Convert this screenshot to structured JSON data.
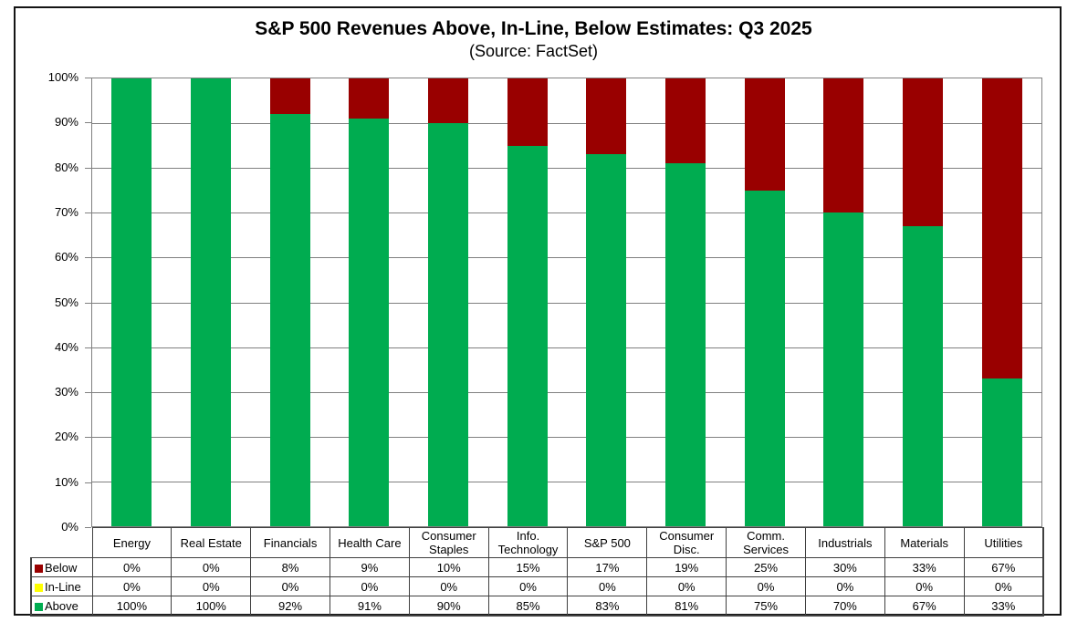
{
  "title": "S&P 500 Revenues Above, In-Line, Below Estimates: Q3 2025",
  "subtitle": "(Source: FactSet)",
  "colors": {
    "below": "#990000",
    "in_line": "#FFFF00",
    "above": "#00AC50",
    "gridline": "#808080",
    "table_border": "#404040"
  },
  "chart_data": {
    "type": "bar",
    "stacked": true,
    "categories": [
      "Energy",
      "Real Estate",
      "Financials",
      "Health Care",
      "Consumer Staples",
      "Info. Technology",
      "S&P 500",
      "Consumer Disc.",
      "Comm. Services",
      "Industrials",
      "Materials",
      "Utilities"
    ],
    "series": [
      {
        "name": "Below",
        "color": "#990000",
        "values": [
          0,
          0,
          8,
          9,
          10,
          15,
          17,
          19,
          25,
          30,
          33,
          67
        ]
      },
      {
        "name": "In-Line",
        "color": "#FFFF00",
        "values": [
          0,
          0,
          0,
          0,
          0,
          0,
          0,
          0,
          0,
          0,
          0,
          0
        ]
      },
      {
        "name": "Above",
        "color": "#00AC50",
        "values": [
          100,
          100,
          92,
          91,
          90,
          85,
          83,
          81,
          75,
          70,
          67,
          33
        ]
      }
    ],
    "title": "S&P 500 Revenues Above, In-Line, Below Estimates: Q3 2025",
    "xlabel": "",
    "ylabel": "",
    "ylim": [
      0,
      100
    ],
    "y_ticks": [
      "0%",
      "10%",
      "20%",
      "30%",
      "40%",
      "50%",
      "60%",
      "70%",
      "80%",
      "90%",
      "100%"
    ],
    "grid": true,
    "legend_position": "table-left",
    "value_suffix": "%"
  }
}
